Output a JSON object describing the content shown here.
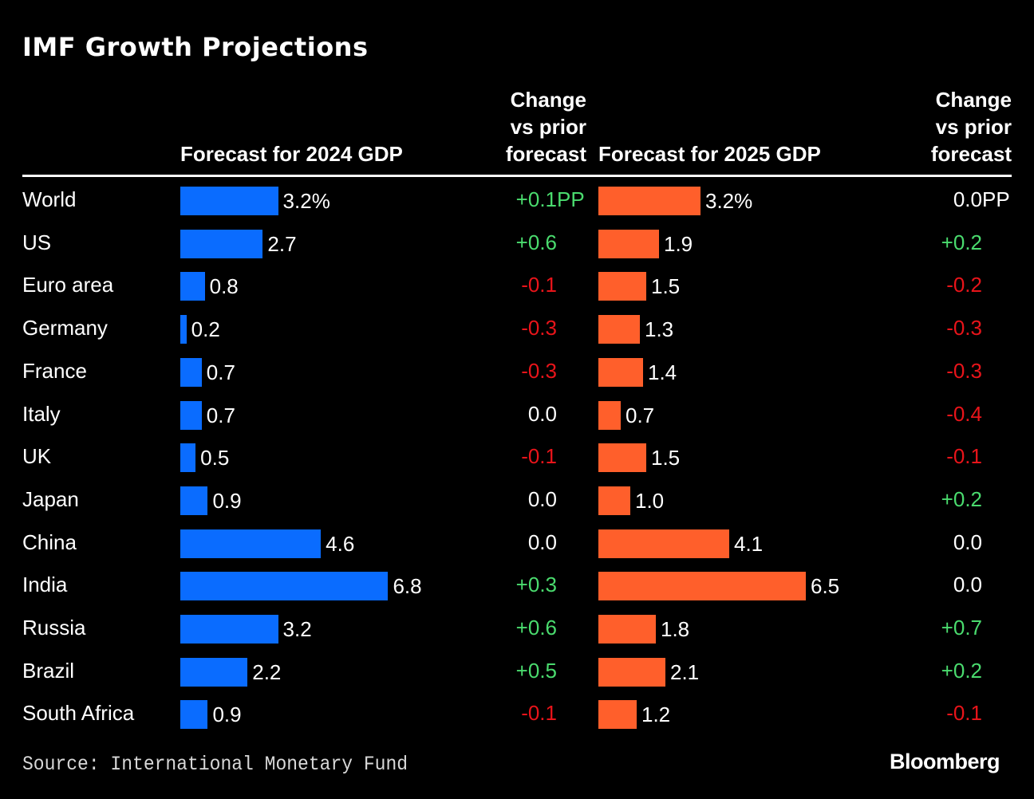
{
  "title": "IMF Growth Projections",
  "headers": {
    "forecast_2024": "Forecast for 2024 GDP",
    "change_2024": [
      "Change",
      "vs prior",
      "forecast"
    ],
    "forecast_2025": "Forecast for 2025 GDP",
    "change_2025": [
      "Change",
      "vs prior",
      "forecast"
    ]
  },
  "colors": {
    "bar_2024": "#0A6CFF",
    "bar_2025": "#FF5F2B",
    "positive": "#4ADB6E",
    "negative": "#E8141A",
    "neutral": "#FFFFFF"
  },
  "chart_data": {
    "type": "bar",
    "orientation": "horizontal",
    "categories": [
      "World",
      "US",
      "Euro area",
      "Germany",
      "France",
      "Italy",
      "UK",
      "Japan",
      "China",
      "India",
      "Russia",
      "Brazil",
      "South Africa"
    ],
    "series": [
      {
        "name": "Forecast for 2024 GDP",
        "values": [
          3.2,
          2.7,
          0.8,
          0.2,
          0.7,
          0.7,
          0.5,
          0.9,
          4.6,
          6.8,
          3.2,
          2.2,
          0.9
        ],
        "labels": [
          "3.2%",
          "2.7",
          "0.8",
          "0.2",
          "0.7",
          "0.7",
          "0.5",
          "0.9",
          "4.6",
          "6.8",
          "3.2",
          "2.2",
          "0.9"
        ]
      },
      {
        "name": "Forecast for 2025 GDP",
        "values": [
          3.2,
          1.9,
          1.5,
          1.3,
          1.4,
          0.7,
          1.5,
          1.0,
          4.1,
          6.5,
          1.8,
          2.1,
          1.2
        ],
        "labels": [
          "3.2%",
          "1.9",
          "1.5",
          "1.3",
          "1.4",
          "0.7",
          "1.5",
          "1.0",
          "4.1",
          "6.5",
          "1.8",
          "2.1",
          "1.2"
        ]
      }
    ],
    "change_2024": [
      "+0.1",
      "+0.6",
      "-0.1",
      "-0.3",
      "-0.3",
      "0.0",
      "-0.1",
      "0.0",
      "0.0",
      "+0.3",
      "+0.6",
      "+0.5",
      "-0.1"
    ],
    "change_2025": [
      "0.0",
      "+0.2",
      "-0.2",
      "-0.3",
      "-0.3",
      "-0.4",
      "-0.1",
      "+0.2",
      "0.0",
      "0.0",
      "+0.7",
      "+0.2",
      "-0.1"
    ],
    "change_unit": "PP"
  },
  "footer": {
    "source": "Source: International Monetary Fund",
    "logo": "Bloomberg"
  }
}
